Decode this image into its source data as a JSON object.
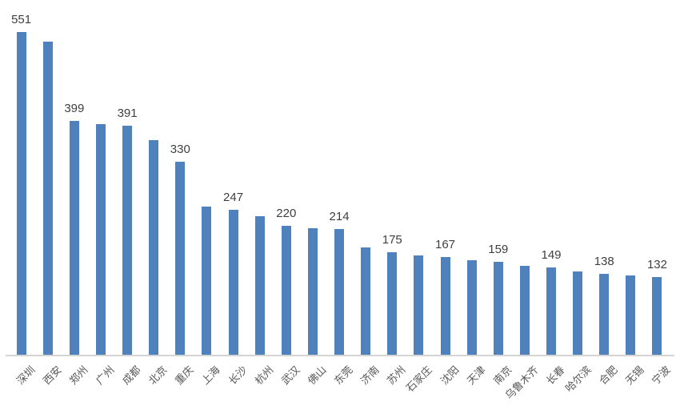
{
  "chart_data": {
    "type": "bar",
    "title": "",
    "xlabel": "",
    "ylabel": "",
    "grid": false,
    "legend": false,
    "y_axis_visible": false,
    "ylim": [
      0,
      560
    ],
    "categories": [
      "深圳",
      "西安",
      "郑州",
      "广州",
      "成都",
      "北京",
      "重庆",
      "上海",
      "长沙",
      "杭州",
      "武汉",
      "佛山",
      "东莞",
      "济南",
      "苏州",
      "石家庄",
      "沈阳",
      "天津",
      "南京",
      "乌鲁木齐",
      "长春",
      "哈尔滨",
      "合肥",
      "无锡",
      "宁波"
    ],
    "values": [
      551,
      535,
      399,
      394,
      391,
      367,
      330,
      253,
      247,
      237,
      220,
      216,
      214,
      183,
      175,
      169,
      167,
      161,
      159,
      152,
      149,
      142,
      138,
      135,
      132
    ],
    "data_labels": {
      "pattern": "every-other-bar-starting-first",
      "visible_values": [
        551,
        399,
        391,
        330,
        247,
        220,
        214,
        175,
        167,
        159,
        149,
        138,
        132
      ]
    },
    "category_label_rotation_deg": -45,
    "colors": {
      "bar": "#4F81BD",
      "value_label": "#3f3f3f",
      "category_label": "#595959",
      "axis_line": "#d4d4d4",
      "background": "#ffffff"
    }
  }
}
